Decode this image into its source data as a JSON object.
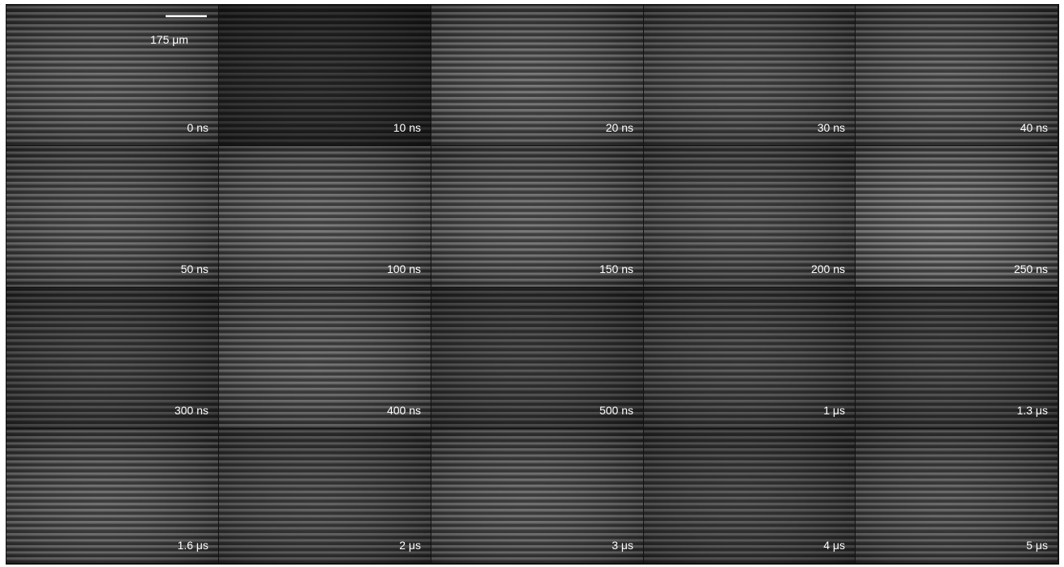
{
  "scale_bar": {
    "label": "175 μm"
  },
  "panels": [
    {
      "label": "0 ns"
    },
    {
      "label": "10 ns"
    },
    {
      "label": "20 ns"
    },
    {
      "label": "30 ns"
    },
    {
      "label": "40 ns"
    },
    {
      "label": "50 ns"
    },
    {
      "label": "100 ns"
    },
    {
      "label": "150 ns"
    },
    {
      "label": "200 ns"
    },
    {
      "label": "250 ns"
    },
    {
      "label": "300 ns"
    },
    {
      "label": "400 ns"
    },
    {
      "label": "500 ns"
    },
    {
      "label": "1 μs"
    },
    {
      "label": "1.3 μs"
    },
    {
      "label": "1.6 μs"
    },
    {
      "label": "2 μs"
    },
    {
      "label": "3 μs"
    },
    {
      "label": "4 μs"
    },
    {
      "label": "5 μs"
    }
  ]
}
